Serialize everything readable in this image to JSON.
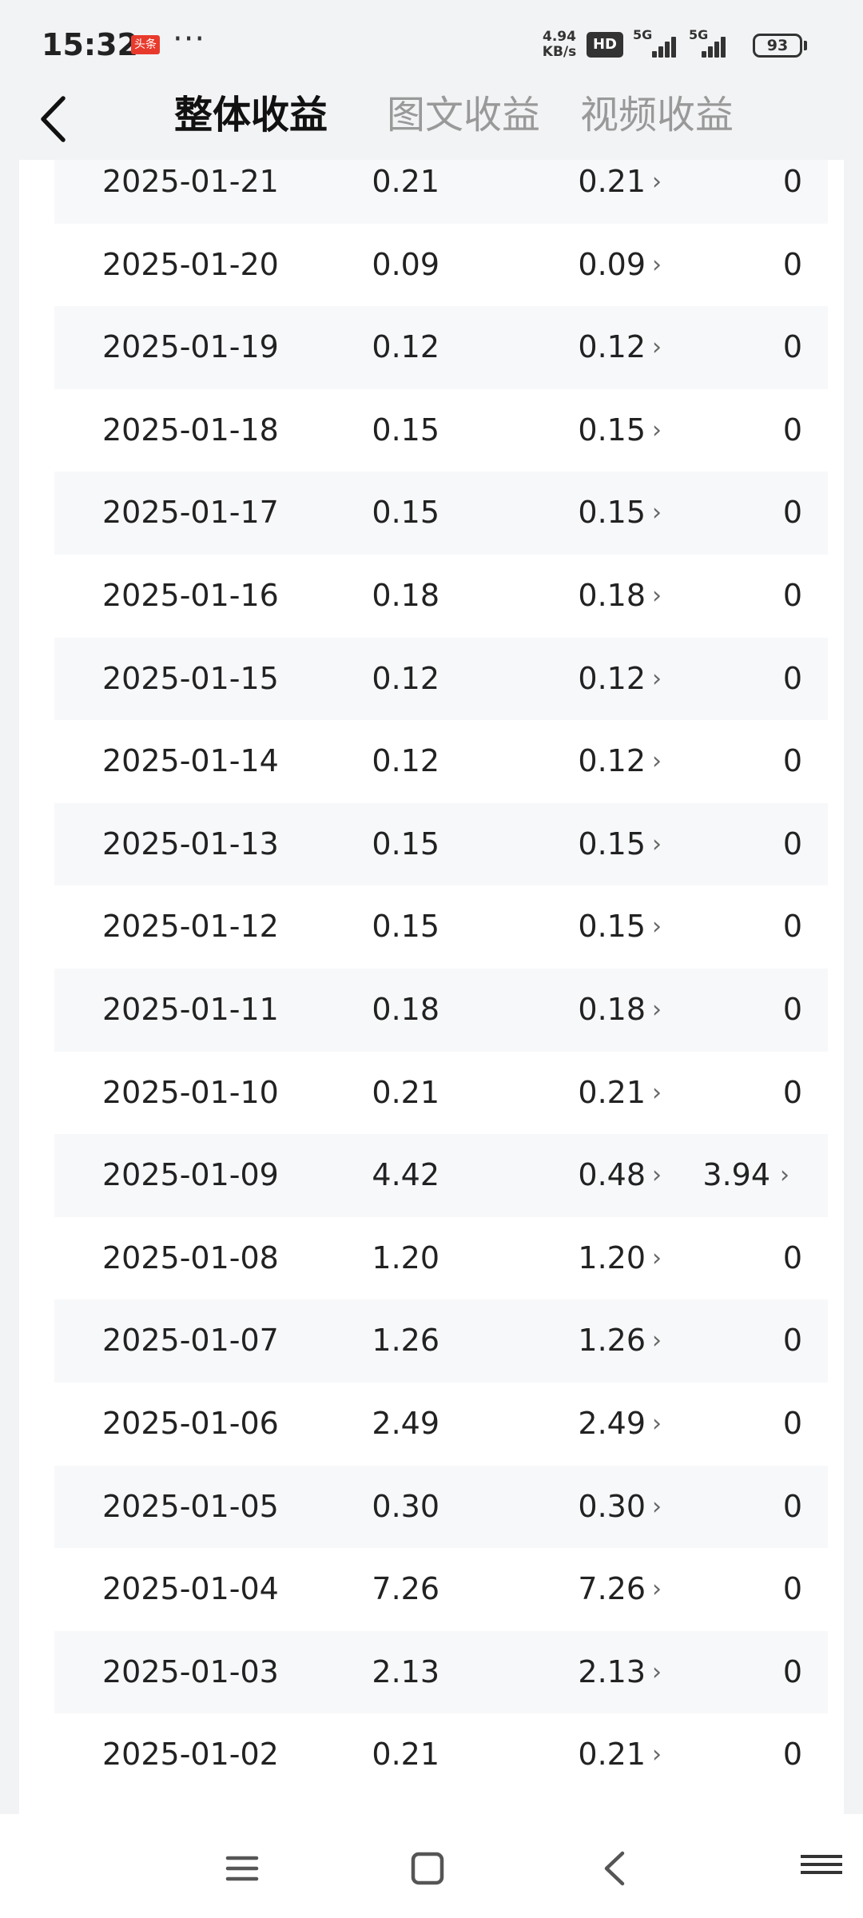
{
  "status_bar": {
    "time": "15:32",
    "app_badge": "头条",
    "more": "···",
    "net_speed_value": "4.94",
    "net_speed_unit": "KB/s",
    "hd": "HD",
    "signal_1": "5G",
    "signal_2": "5G",
    "battery": "93"
  },
  "header": {
    "tabs": [
      {
        "label": "整体收益",
        "active": true
      },
      {
        "label": "图文收益",
        "active": false
      },
      {
        "label": "视频收益",
        "active": false
      }
    ]
  },
  "rows": [
    {
      "date": "2025-01-21",
      "total": "0.21",
      "article": "0.21",
      "video": "0"
    },
    {
      "date": "2025-01-20",
      "total": "0.09",
      "article": "0.09",
      "video": "0"
    },
    {
      "date": "2025-01-19",
      "total": "0.12",
      "article": "0.12",
      "video": "0"
    },
    {
      "date": "2025-01-18",
      "total": "0.15",
      "article": "0.15",
      "video": "0"
    },
    {
      "date": "2025-01-17",
      "total": "0.15",
      "article": "0.15",
      "video": "0"
    },
    {
      "date": "2025-01-16",
      "total": "0.18",
      "article": "0.18",
      "video": "0"
    },
    {
      "date": "2025-01-15",
      "total": "0.12",
      "article": "0.12",
      "video": "0"
    },
    {
      "date": "2025-01-14",
      "total": "0.12",
      "article": "0.12",
      "video": "0"
    },
    {
      "date": "2025-01-13",
      "total": "0.15",
      "article": "0.15",
      "video": "0"
    },
    {
      "date": "2025-01-12",
      "total": "0.15",
      "article": "0.15",
      "video": "0"
    },
    {
      "date": "2025-01-11",
      "total": "0.18",
      "article": "0.18",
      "video": "0"
    },
    {
      "date": "2025-01-10",
      "total": "0.21",
      "article": "0.21",
      "video": "0"
    },
    {
      "date": "2025-01-09",
      "total": "4.42",
      "article": "0.48",
      "video": "3.94"
    },
    {
      "date": "2025-01-08",
      "total": "1.20",
      "article": "1.20",
      "video": "0"
    },
    {
      "date": "2025-01-07",
      "total": "1.26",
      "article": "1.26",
      "video": "0"
    },
    {
      "date": "2025-01-06",
      "total": "2.49",
      "article": "2.49",
      "video": "0"
    },
    {
      "date": "2025-01-05",
      "total": "0.30",
      "article": "0.30",
      "video": "0"
    },
    {
      "date": "2025-01-04",
      "total": "7.26",
      "article": "7.26",
      "video": "0"
    },
    {
      "date": "2025-01-03",
      "total": "2.13",
      "article": "2.13",
      "video": "0"
    },
    {
      "date": "2025-01-02",
      "total": "0.21",
      "article": "0.21",
      "video": "0"
    }
  ],
  "icons": {
    "back": "chevron-left-icon",
    "row_arrow": "chevron-right-icon",
    "nav_menu": "menu-icon",
    "nav_home": "home-square-icon",
    "nav_back": "back-triangle-icon"
  },
  "colors": {
    "background": "#f2f3f5",
    "card": "#ffffff",
    "alt_row": "#f7f8fa",
    "active_tab": "#111111",
    "inactive_tab": "#999999",
    "badge": "#e83a2c"
  }
}
